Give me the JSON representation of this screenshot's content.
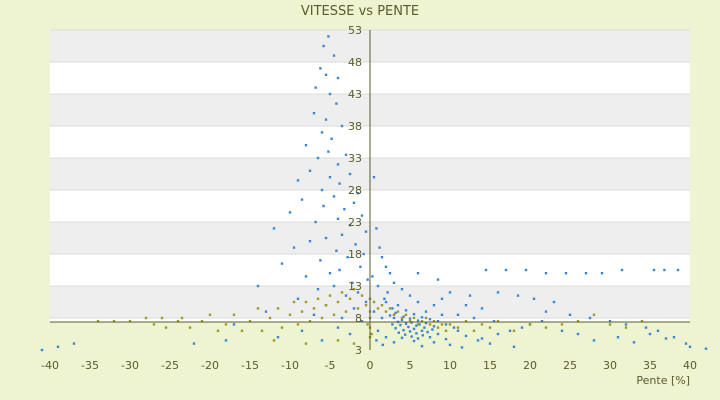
{
  "chart_data": {
    "type": "scatter",
    "title": "VITESSE vs PENTE",
    "xlabel": "Pente [%]",
    "ylabel": "",
    "xlim": [
      -40,
      40
    ],
    "ylim": [
      3,
      53
    ],
    "grid": true,
    "legend": "none",
    "x_ticks": [
      "-40",
      "-35",
      "-30",
      "-25",
      "-20",
      "-15",
      "-10",
      "-5",
      "0",
      "5",
      "10",
      "15",
      "20",
      "25",
      "30",
      "35",
      "40"
    ],
    "y_ticks": [
      "3",
      "8",
      "13",
      "18",
      "23",
      "28",
      "33",
      "38",
      "43",
      "48",
      "53"
    ],
    "colors": {
      "blue": "#3a86d4",
      "olive": "#9a9a1c",
      "axis": "#5b5b2a",
      "band": "#eeeeee",
      "background": "#eef3d1"
    },
    "series": [
      {
        "color": "blue",
        "points": [
          [
            -5.2,
            52.0
          ],
          [
            -5.8,
            50.5
          ],
          [
            -4.5,
            49.0
          ],
          [
            -6.2,
            47.0
          ],
          [
            -5.5,
            46.0
          ],
          [
            -4.0,
            45.5
          ],
          [
            -6.8,
            44.0
          ],
          [
            -5.0,
            43.0
          ],
          [
            -4.2,
            41.5
          ],
          [
            -7.0,
            40.0
          ],
          [
            -5.5,
            39.0
          ],
          [
            -3.5,
            38.0
          ],
          [
            -6.0,
            37.0
          ],
          [
            -4.8,
            36.0
          ],
          [
            -8.0,
            35.0
          ],
          [
            -5.2,
            34.0
          ],
          [
            -3.0,
            33.5
          ],
          [
            -6.5,
            33.0
          ],
          [
            -4.0,
            32.0
          ],
          [
            -7.5,
            31.0
          ],
          [
            -2.5,
            30.5
          ],
          [
            -5.0,
            30.0
          ],
          [
            -9.0,
            29.5
          ],
          [
            -3.8,
            29.0
          ],
          [
            -6.0,
            28.0
          ],
          [
            -1.5,
            27.5
          ],
          [
            -4.5,
            27.0
          ],
          [
            -8.5,
            26.5
          ],
          [
            -2.0,
            26.0
          ],
          [
            -5.8,
            25.5
          ],
          [
            -3.2,
            25.0
          ],
          [
            -10.0,
            24.5
          ],
          [
            -1.0,
            24.0
          ],
          [
            -4.0,
            23.5
          ],
          [
            -6.8,
            23.0
          ],
          [
            -2.5,
            22.5
          ],
          [
            -12.0,
            22.0
          ],
          [
            -0.5,
            21.5
          ],
          [
            -3.5,
            21.0
          ],
          [
            -5.5,
            20.5
          ],
          [
            -7.5,
            20.0
          ],
          [
            -1.8,
            19.5
          ],
          [
            -9.5,
            19.0
          ],
          [
            -4.2,
            18.5
          ],
          [
            -0.8,
            18.0
          ],
          [
            -2.8,
            17.5
          ],
          [
            -6.2,
            17.0
          ],
          [
            -11.0,
            16.5
          ],
          [
            -1.2,
            16.0
          ],
          [
            -3.8,
            15.5
          ],
          [
            -5.0,
            15.0
          ],
          [
            -8.0,
            14.5
          ],
          [
            -0.3,
            14.0
          ],
          [
            -2.2,
            13.5
          ],
          [
            -4.5,
            13.0
          ],
          [
            -14.0,
            13.0
          ],
          [
            -6.5,
            12.5
          ],
          [
            -1.5,
            12.0
          ],
          [
            -3.0,
            11.5
          ],
          [
            -9.0,
            11.0
          ],
          [
            -0.5,
            10.5
          ],
          [
            -5.5,
            10.0
          ],
          [
            -2.0,
            9.5
          ],
          [
            -13.0,
            9.0
          ],
          [
            -7.0,
            8.5
          ],
          [
            -3.5,
            8.0
          ],
          [
            -1.0,
            7.5
          ],
          [
            -17.0,
            7.0
          ],
          [
            -4.0,
            6.5
          ],
          [
            -8.5,
            6.0
          ],
          [
            -2.5,
            5.5
          ],
          [
            -11.5,
            5.0
          ],
          [
            -6.0,
            4.5
          ],
          [
            -22.0,
            4.0
          ],
          [
            -18.0,
            4.5
          ],
          [
            -39.0,
            3.5
          ],
          [
            -37.0,
            4.0
          ],
          [
            -41.0,
            3.0
          ],
          [
            0.5,
            30.0
          ],
          [
            0.8,
            22.0
          ],
          [
            1.2,
            19.0
          ],
          [
            1.5,
            17.5
          ],
          [
            2.0,
            16.0
          ],
          [
            2.5,
            15.0
          ],
          [
            0.3,
            14.5
          ],
          [
            3.0,
            13.5
          ],
          [
            1.0,
            13.0
          ],
          [
            4.0,
            12.5
          ],
          [
            2.2,
            12.0
          ],
          [
            5.0,
            11.5
          ],
          [
            1.8,
            11.0
          ],
          [
            6.0,
            10.5
          ],
          [
            3.5,
            10.0
          ],
          [
            8.0,
            10.0
          ],
          [
            2.8,
            9.5
          ],
          [
            4.5,
            9.2
          ],
          [
            7.0,
            9.0
          ],
          [
            3.2,
            8.8
          ],
          [
            5.5,
            8.6
          ],
          [
            9.0,
            8.5
          ],
          [
            2.5,
            8.4
          ],
          [
            4.2,
            8.2
          ],
          [
            6.5,
            8.1
          ],
          [
            3.0,
            8.0
          ],
          [
            5.0,
            7.9
          ],
          [
            7.5,
            7.8
          ],
          [
            4.0,
            7.7
          ],
          [
            6.0,
            7.6
          ],
          [
            8.5,
            7.5
          ],
          [
            3.5,
            7.4
          ],
          [
            5.2,
            7.3
          ],
          [
            7.0,
            7.2
          ],
          [
            4.5,
            7.1
          ],
          [
            6.2,
            7.0
          ],
          [
            9.5,
            7.0
          ],
          [
            3.8,
            6.9
          ],
          [
            5.8,
            6.8
          ],
          [
            8.0,
            6.7
          ],
          [
            4.8,
            6.6
          ],
          [
            6.8,
            6.5
          ],
          [
            10.5,
            6.5
          ],
          [
            3.2,
            6.4
          ],
          [
            5.5,
            6.3
          ],
          [
            7.8,
            6.2
          ],
          [
            4.2,
            6.1
          ],
          [
            6.5,
            6.0
          ],
          [
            11.0,
            6.0
          ],
          [
            5.0,
            5.9
          ],
          [
            7.2,
            5.8
          ],
          [
            3.6,
            5.7
          ],
          [
            5.8,
            5.6
          ],
          [
            8.5,
            5.5
          ],
          [
            4.4,
            5.4
          ],
          [
            6.6,
            5.3
          ],
          [
            12.0,
            5.2
          ],
          [
            5.2,
            5.1
          ],
          [
            7.5,
            5.0
          ],
          [
            4.0,
            4.9
          ],
          [
            6.0,
            4.8
          ],
          [
            9.5,
            4.7
          ],
          [
            13.5,
            4.5
          ],
          [
            5.5,
            4.4
          ],
          [
            8.0,
            4.2
          ],
          [
            15.0,
            4.0
          ],
          [
            10.0,
            3.8
          ],
          [
            6.5,
            3.6
          ],
          [
            18.0,
            3.5
          ],
          [
            11.5,
            3.4
          ],
          [
            14.0,
            4.8
          ],
          [
            16.0,
            5.5
          ],
          [
            17.5,
            6.0
          ],
          [
            19.0,
            6.5
          ],
          [
            20.0,
            7.0
          ],
          [
            21.5,
            7.5
          ],
          [
            24.0,
            6.0
          ],
          [
            26.0,
            5.5
          ],
          [
            28.0,
            4.5
          ],
          [
            31.0,
            5.0
          ],
          [
            33.0,
            4.2
          ],
          [
            35.0,
            5.5
          ],
          [
            37.0,
            4.8
          ],
          [
            40.0,
            3.5
          ],
          [
            42.0,
            3.2
          ],
          [
            14.5,
            15.5
          ],
          [
            17.0,
            15.5
          ],
          [
            19.5,
            15.5
          ],
          [
            22.0,
            15.0
          ],
          [
            24.5,
            15.0
          ],
          [
            27.0,
            15.0
          ],
          [
            29.0,
            15.0
          ],
          [
            31.5,
            15.5
          ],
          [
            35.5,
            15.5
          ],
          [
            36.8,
            15.5
          ],
          [
            38.5,
            15.5
          ],
          [
            16.0,
            12.0
          ],
          [
            18.5,
            11.5
          ],
          [
            20.5,
            11.0
          ],
          [
            23.0,
            10.5
          ],
          [
            10.0,
            12.0
          ],
          [
            12.5,
            11.5
          ],
          [
            8.5,
            14.0
          ],
          [
            6.0,
            15.0
          ],
          [
            22.0,
            9.0
          ],
          [
            25.0,
            8.5
          ],
          [
            27.5,
            8.0
          ],
          [
            30.0,
            7.5
          ],
          [
            32.0,
            7.0
          ],
          [
            34.5,
            6.5
          ],
          [
            36.0,
            6.0
          ],
          [
            38.0,
            5.0
          ],
          [
            39.5,
            4.0
          ],
          [
            11.0,
            8.5
          ],
          [
            13.0,
            8.0
          ],
          [
            15.5,
            7.5
          ],
          [
            12.0,
            10.0
          ],
          [
            14.0,
            9.5
          ],
          [
            9.0,
            11.0
          ],
          [
            2.0,
            10.5
          ],
          [
            0.5,
            9.0
          ],
          [
            1.5,
            8.0
          ],
          [
            2.8,
            7.0
          ],
          [
            1.0,
            6.0
          ],
          [
            2.0,
            5.0
          ],
          [
            0.8,
            4.5
          ],
          [
            3.0,
            4.2
          ],
          [
            1.6,
            3.8
          ]
        ]
      },
      {
        "color": "olive",
        "points": [
          [
            -34.0,
            7.5
          ],
          [
            -32.0,
            7.5
          ],
          [
            -30.0,
            7.5
          ],
          [
            -28.0,
            8.0
          ],
          [
            -27.0,
            7.0
          ],
          [
            -26.0,
            8.0
          ],
          [
            -25.5,
            6.5
          ],
          [
            -24.0,
            7.5
          ],
          [
            -23.5,
            8.0
          ],
          [
            -22.5,
            6.5
          ],
          [
            -21.0,
            7.5
          ],
          [
            -20.0,
            8.5
          ],
          [
            -19.0,
            6.0
          ],
          [
            -18.0,
            7.0
          ],
          [
            -17.0,
            8.5
          ],
          [
            -16.0,
            6.0
          ],
          [
            -15.0,
            7.5
          ],
          [
            -14.0,
            9.5
          ],
          [
            -13.5,
            6.0
          ],
          [
            -12.5,
            8.0
          ],
          [
            -11.5,
            9.5
          ],
          [
            -11.0,
            6.5
          ],
          [
            -10.0,
            8.5
          ],
          [
            -9.5,
            10.5
          ],
          [
            -9.0,
            7.0
          ],
          [
            -8.5,
            9.0
          ],
          [
            -8.0,
            10.5
          ],
          [
            -7.5,
            7.5
          ],
          [
            -7.0,
            9.5
          ],
          [
            -6.5,
            11.0
          ],
          [
            -6.0,
            8.0
          ],
          [
            -5.5,
            10.0
          ],
          [
            -5.0,
            11.5
          ],
          [
            -4.5,
            8.5
          ],
          [
            -4.0,
            10.5
          ],
          [
            -3.5,
            12.0
          ],
          [
            -3.0,
            9.0
          ],
          [
            -2.5,
            11.0
          ],
          [
            -2.0,
            12.5
          ],
          [
            -1.5,
            9.5
          ],
          [
            -1.0,
            11.5
          ],
          [
            -0.5,
            10.0
          ],
          [
            0.0,
            11.0
          ],
          [
            0.5,
            10.5
          ],
          [
            1.0,
            9.5
          ],
          [
            1.5,
            10.0
          ],
          [
            2.0,
            9.0
          ],
          [
            2.5,
            9.5
          ],
          [
            3.0,
            8.5
          ],
          [
            3.5,
            9.0
          ],
          [
            4.0,
            8.0
          ],
          [
            4.5,
            8.5
          ],
          [
            5.0,
            7.5
          ],
          [
            5.5,
            8.0
          ],
          [
            6.0,
            7.0
          ],
          [
            6.5,
            7.5
          ],
          [
            7.0,
            8.0
          ],
          [
            7.5,
            7.0
          ],
          [
            8.0,
            7.5
          ],
          [
            8.5,
            6.5
          ],
          [
            9.0,
            7.0
          ],
          [
            9.5,
            6.0
          ],
          [
            10.0,
            7.0
          ],
          [
            11.0,
            6.5
          ],
          [
            12.0,
            7.5
          ],
          [
            13.0,
            6.0
          ],
          [
            14.0,
            7.0
          ],
          [
            15.0,
            6.5
          ],
          [
            16.0,
            7.5
          ],
          [
            18.0,
            6.0
          ],
          [
            20.0,
            7.0
          ],
          [
            22.0,
            6.5
          ],
          [
            24.0,
            7.0
          ],
          [
            26.0,
            7.5
          ],
          [
            28.0,
            8.5
          ],
          [
            30.0,
            7.0
          ],
          [
            32.0,
            6.5
          ],
          [
            34.0,
            7.5
          ],
          [
            -12.0,
            4.5
          ],
          [
            -8.0,
            4.0
          ],
          [
            -4.0,
            4.5
          ],
          [
            -2.0,
            4.0
          ],
          [
            0.0,
            5.0
          ],
          [
            0.0,
            6.5
          ],
          [
            0.0,
            8.0
          ],
          [
            0.0,
            9.0
          ],
          [
            -0.3,
            7.0
          ],
          [
            0.2,
            5.5
          ]
        ]
      }
    ]
  }
}
